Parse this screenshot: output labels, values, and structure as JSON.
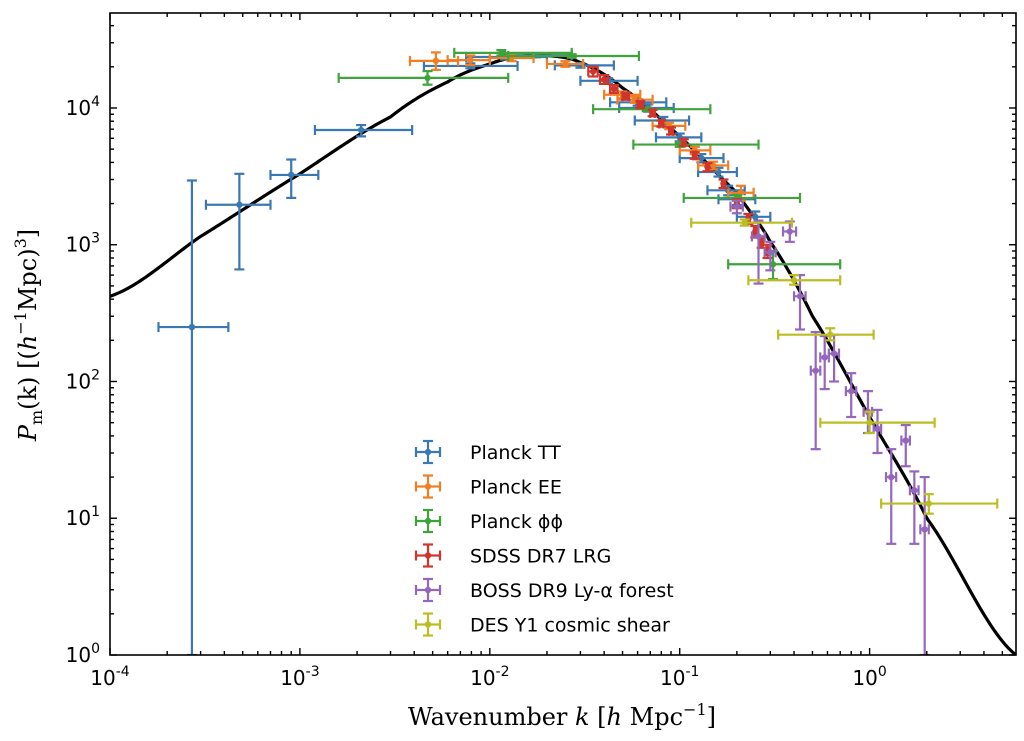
{
  "chart_data": {
    "type": "scatter",
    "title": "",
    "xlabel": "Wavenumber k [h Mpc^-1]",
    "xlabel_parts": {
      "main": "Wavenumber ",
      "var": "k",
      "unit_open": " [",
      "unit_h": "h",
      "unit_mpc": " Mpc",
      "unit_exp": "−1",
      "unit_close": "]"
    },
    "ylabel": "P_m(k) [(h^-1 Mpc)^3]",
    "ylabel_parts": {
      "var": "P",
      "sub": "m",
      "arg": "(k)",
      "unit_open": " [(",
      "unit_h": "h",
      "unit_exp1": "−1",
      "unit_mpc": "Mpc)",
      "unit_exp3": "3",
      "unit_close": "]"
    },
    "xscale": "log",
    "yscale": "log",
    "xlim": [
      0.0001,
      5.9
    ],
    "ylim": [
      1,
      49500
    ],
    "grid": false,
    "legend_placement": "lower-center",
    "x_ticks": [
      {
        "base": "10",
        "exp": "-4",
        "value": 0.0001
      },
      {
        "base": "10",
        "exp": "-3",
        "value": 0.001
      },
      {
        "base": "10",
        "exp": "-2",
        "value": 0.01
      },
      {
        "base": "10",
        "exp": "-1",
        "value": 0.1
      },
      {
        "base": "10",
        "exp": "0",
        "value": 1
      }
    ],
    "y_ticks": [
      {
        "base": "10",
        "exp": "0",
        "value": 1
      },
      {
        "base": "10",
        "exp": "1",
        "value": 10
      },
      {
        "base": "10",
        "exp": "2",
        "value": 100
      },
      {
        "base": "10",
        "exp": "3",
        "value": 1000
      },
      {
        "base": "10",
        "exp": "4",
        "value": 10000
      }
    ],
    "model_curve": {
      "name": "linear matter power spectrum",
      "color": "#000000",
      "k": [
        0.0001,
        0.0003,
        0.001,
        0.003,
        0.006,
        0.01,
        0.015,
        0.02,
        0.03,
        0.05,
        0.1,
        0.2,
        0.3,
        0.5,
        1.0,
        2.0,
        5.9
      ],
      "P": [
        420,
        1150,
        3300,
        8600,
        15500,
        21000,
        24000,
        24200,
        21500,
        14000,
        6200,
        2400,
        1050,
        300,
        55,
        10,
        1
      ]
    },
    "series": [
      {
        "name": "Planck TT",
        "color": "#3a78b4",
        "points": [
          {
            "k": 0.00027,
            "P": 250,
            "klo": 0.00018,
            "khi": 0.00042,
            "Plo": 1,
            "Phi": 2950
          },
          {
            "k": 0.00048,
            "P": 1960,
            "klo": 0.00032,
            "khi": 0.0007,
            "Plo": 660,
            "Phi": 3300
          },
          {
            "k": 0.0009,
            "P": 3240,
            "klo": 0.0007,
            "khi": 0.00125,
            "Plo": 2200,
            "Phi": 4200
          },
          {
            "k": 0.0021,
            "P": 6900,
            "klo": 0.0012,
            "khi": 0.0039,
            "Plo": 6200,
            "Phi": 7500
          },
          {
            "k": 0.0079,
            "P": 20300,
            "klo": 0.0045,
            "khi": 0.014,
            "Plo": 19500,
            "Phi": 21200
          },
          {
            "k": 0.012,
            "P": 23600,
            "klo": 0.0075,
            "khi": 0.02,
            "Plo": 22600,
            "Phi": 24600
          },
          {
            "k": 0.0175,
            "P": 24300,
            "klo": 0.012,
            "khi": 0.027,
            "Plo": 23500,
            "Phi": 25100
          },
          {
            "k": 0.03,
            "P": 20500,
            "klo": 0.022,
            "khi": 0.045,
            "Plo": 19700,
            "Phi": 21300
          },
          {
            "k": 0.042,
            "P": 15800,
            "klo": 0.03,
            "khi": 0.06,
            "Plo": 15100,
            "Phi": 16500
          },
          {
            "k": 0.06,
            "P": 11000,
            "klo": 0.043,
            "khi": 0.085,
            "Plo": 10400,
            "Phi": 11600
          },
          {
            "k": 0.068,
            "P": 10000,
            "klo": 0.048,
            "khi": 0.093,
            "Plo": 9400,
            "Phi": 10600
          },
          {
            "k": 0.082,
            "P": 8100,
            "klo": 0.058,
            "khi": 0.112,
            "Plo": 7600,
            "Phi": 8600
          },
          {
            "k": 0.1,
            "P": 6100,
            "klo": 0.075,
            "khi": 0.13,
            "Plo": 5700,
            "Phi": 6500
          },
          {
            "k": 0.13,
            "P": 4300,
            "klo": 0.1,
            "khi": 0.17,
            "Plo": 4000,
            "Phi": 4600
          },
          {
            "k": 0.16,
            "P": 3400,
            "klo": 0.125,
            "khi": 0.2,
            "Plo": 3150,
            "Phi": 3650
          },
          {
            "k": 0.18,
            "P": 2500,
            "klo": 0.14,
            "khi": 0.22,
            "Plo": 2300,
            "Phi": 2700
          },
          {
            "k": 0.2,
            "P": 2150,
            "klo": 0.16,
            "khi": 0.25,
            "Plo": 1950,
            "Phi": 2350
          },
          {
            "k": 0.25,
            "P": 1600,
            "klo": 0.2,
            "khi": 0.3,
            "Plo": 1450,
            "Phi": 1750
          }
        ]
      },
      {
        "name": "Planck EE",
        "color": "#f07f24",
        "points": [
          {
            "k": 0.0052,
            "P": 22100,
            "klo": 0.0038,
            "khi": 0.0068,
            "Plo": 19000,
            "Phi": 25500
          },
          {
            "k": 0.0079,
            "P": 22400,
            "klo": 0.006,
            "khi": 0.01,
            "Plo": 20600,
            "Phi": 24200
          },
          {
            "k": 0.013,
            "P": 23200,
            "klo": 0.01,
            "khi": 0.017,
            "Plo": 22000,
            "Phi": 24400
          },
          {
            "k": 0.025,
            "P": 21000,
            "klo": 0.02,
            "khi": 0.031,
            "Plo": 20000,
            "Phi": 22000
          },
          {
            "k": 0.05,
            "P": 12500,
            "klo": 0.04,
            "khi": 0.062,
            "Plo": 11800,
            "Phi": 13200
          },
          {
            "k": 0.058,
            "P": 11500,
            "klo": 0.047,
            "khi": 0.072,
            "Plo": 10900,
            "Phi": 12100
          },
          {
            "k": 0.088,
            "P": 7400,
            "klo": 0.072,
            "khi": 0.107,
            "Plo": 7000,
            "Phi": 7800
          },
          {
            "k": 0.12,
            "P": 4900,
            "klo": 0.1,
            "khi": 0.145,
            "Plo": 4600,
            "Phi": 5200
          },
          {
            "k": 0.15,
            "P": 3800,
            "klo": 0.125,
            "khi": 0.18,
            "Plo": 3550,
            "Phi": 4050
          },
          {
            "k": 0.21,
            "P": 2400,
            "klo": 0.18,
            "khi": 0.245,
            "Plo": 2100,
            "Phi": 2700
          }
        ]
      },
      {
        "name": "Planck ϕϕ",
        "color": "#3ea33a",
        "points": [
          {
            "k": 0.0047,
            "P": 16600,
            "klo": 0.0016,
            "khi": 0.0125,
            "Plo": 14800,
            "Phi": 18600
          },
          {
            "k": 0.0115,
            "P": 25300,
            "klo": 0.0065,
            "khi": 0.027,
            "Plo": 24200,
            "Phi": 26500
          },
          {
            "k": 0.027,
            "P": 24000,
            "klo": 0.0125,
            "khi": 0.061,
            "Plo": 23300,
            "Phi": 24700
          },
          {
            "k": 0.067,
            "P": 9800,
            "klo": 0.035,
            "khi": 0.145,
            "Plo": 9500,
            "Phi": 10100
          },
          {
            "k": 0.1,
            "P": 5400,
            "klo": 0.057,
            "khi": 0.26,
            "Plo": 5200,
            "Phi": 5600
          },
          {
            "k": 0.2,
            "P": 2200,
            "klo": 0.105,
            "khi": 0.43,
            "Plo": 2100,
            "Phi": 2300
          },
          {
            "k": 0.31,
            "P": 720,
            "klo": 0.18,
            "khi": 0.7,
            "Plo": 560,
            "Phi": 900
          }
        ]
      },
      {
        "name": "SDSS DR7 LRG",
        "color": "#d0352b",
        "points": [
          {
            "k": 0.035,
            "P": 18500,
            "klo": 0.033,
            "khi": 0.037,
            "Plo": 17000,
            "Phi": 20000
          },
          {
            "k": 0.04,
            "P": 16200,
            "klo": 0.038,
            "khi": 0.042,
            "Plo": 15000,
            "Phi": 17400
          },
          {
            "k": 0.045,
            "P": 13800,
            "klo": 0.043,
            "khi": 0.047,
            "Plo": 12900,
            "Phi": 14700
          },
          {
            "k": 0.052,
            "P": 12200,
            "klo": 0.05,
            "khi": 0.054,
            "Plo": 11500,
            "Phi": 12900
          },
          {
            "k": 0.062,
            "P": 10600,
            "klo": 0.06,
            "khi": 0.064,
            "Plo": 10000,
            "Phi": 11200
          },
          {
            "k": 0.072,
            "P": 9200,
            "klo": 0.07,
            "khi": 0.074,
            "Plo": 8700,
            "Phi": 9700
          },
          {
            "k": 0.08,
            "P": 7700,
            "klo": 0.078,
            "khi": 0.082,
            "Plo": 7300,
            "Phi": 8100
          },
          {
            "k": 0.09,
            "P": 6800,
            "klo": 0.088,
            "khi": 0.092,
            "Plo": 6400,
            "Phi": 7200
          },
          {
            "k": 0.105,
            "P": 5600,
            "klo": 0.103,
            "khi": 0.107,
            "Plo": 5300,
            "Phi": 5900
          },
          {
            "k": 0.12,
            "P": 4500,
            "klo": 0.118,
            "khi": 0.122,
            "Plo": 4250,
            "Phi": 4750
          },
          {
            "k": 0.14,
            "P": 3700,
            "klo": 0.138,
            "khi": 0.142,
            "Plo": 3450,
            "Phi": 3950
          },
          {
            "k": 0.17,
            "P": 2800,
            "klo": 0.167,
            "khi": 0.173,
            "Plo": 2600,
            "Phi": 3000
          },
          {
            "k": 0.2,
            "P": 2000,
            "klo": 0.197,
            "khi": 0.203,
            "Plo": 1850,
            "Phi": 2150
          },
          {
            "k": 0.23,
            "P": 1550,
            "klo": 0.226,
            "khi": 0.234,
            "Plo": 1420,
            "Phi": 1680
          },
          {
            "k": 0.25,
            "P": 1250,
            "klo": 0.246,
            "khi": 0.254,
            "Plo": 1130,
            "Phi": 1370
          },
          {
            "k": 0.27,
            "P": 1050,
            "klo": 0.266,
            "khi": 0.274,
            "Plo": 950,
            "Phi": 1150
          },
          {
            "k": 0.29,
            "P": 900,
            "klo": 0.286,
            "khi": 0.294,
            "Plo": 800,
            "Phi": 1000
          }
        ]
      },
      {
        "name": "BOSS DR9 Ly-α forest",
        "color": "#9467bd",
        "points": [
          {
            "k": 0.2,
            "P": 1900,
            "klo": 0.185,
            "khi": 0.215,
            "Plo": 1700,
            "Phi": 2100
          },
          {
            "k": 0.26,
            "P": 1150,
            "klo": 0.24,
            "khi": 0.28,
            "Plo": 520,
            "Phi": 1500
          },
          {
            "k": 0.3,
            "P": 880,
            "klo": 0.28,
            "khi": 0.32,
            "Plo": 650,
            "Phi": 1050
          },
          {
            "k": 0.38,
            "P": 1250,
            "klo": 0.35,
            "khi": 0.41,
            "Plo": 1050,
            "Phi": 1480
          },
          {
            "k": 0.43,
            "P": 420,
            "klo": 0.4,
            "khi": 0.46,
            "Plo": 240,
            "Phi": 600
          },
          {
            "k": 0.52,
            "P": 120,
            "klo": 0.49,
            "khi": 0.55,
            "Plo": 32,
            "Phi": 230
          },
          {
            "k": 0.58,
            "P": 150,
            "klo": 0.55,
            "khi": 0.61,
            "Plo": 88,
            "Phi": 215
          },
          {
            "k": 0.65,
            "P": 160,
            "klo": 0.61,
            "khi": 0.69,
            "Plo": 100,
            "Phi": 220
          },
          {
            "k": 0.8,
            "P": 85,
            "klo": 0.75,
            "khi": 0.85,
            "Plo": 55,
            "Phi": 115
          },
          {
            "k": 0.98,
            "P": 60,
            "klo": 0.93,
            "khi": 1.03,
            "Plo": 42,
            "Phi": 85
          },
          {
            "k": 1.1,
            "P": 45,
            "klo": 1.05,
            "khi": 1.15,
            "Plo": 30,
            "Phi": 62
          },
          {
            "k": 1.3,
            "P": 20,
            "klo": 1.22,
            "khi": 1.38,
            "Plo": 6.5,
            "Phi": 32
          },
          {
            "k": 1.55,
            "P": 37,
            "klo": 1.47,
            "khi": 1.63,
            "Plo": 24,
            "Phi": 48
          },
          {
            "k": 1.72,
            "P": 16,
            "klo": 1.63,
            "khi": 1.81,
            "Plo": 6.5,
            "Phi": 22
          },
          {
            "k": 1.95,
            "P": 8.3,
            "klo": 1.85,
            "khi": 2.05,
            "Plo": 1,
            "Phi": 20
          }
        ]
      },
      {
        "name": "DES Y1 cosmic shear",
        "color": "#bcbd22",
        "points": [
          {
            "k": 0.22,
            "P": 1450,
            "klo": 0.115,
            "khi": 0.39,
            "Plo": 1380,
            "Phi": 1530
          },
          {
            "k": 0.4,
            "P": 550,
            "klo": 0.23,
            "khi": 0.7,
            "Plo": 510,
            "Phi": 600
          },
          {
            "k": 0.62,
            "P": 220,
            "klo": 0.33,
            "khi": 1.05,
            "Plo": 200,
            "Phi": 245
          },
          {
            "k": 1.0,
            "P": 50,
            "klo": 0.55,
            "khi": 2.2,
            "Plo": 42,
            "Phi": 60
          },
          {
            "k": 2.05,
            "P": 12.8,
            "klo": 1.15,
            "khi": 4.7,
            "Plo": 10.8,
            "Phi": 15
          }
        ]
      }
    ]
  }
}
